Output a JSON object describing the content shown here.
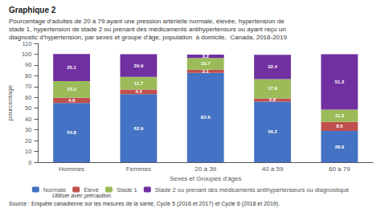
{
  "chart_data": {
    "type": "bar",
    "title": "Graphique 2",
    "subtitle": [
      "Pourcentage d'adultes de 20 à 79 ayant une pression artérielle normale, élevée, hypertension de",
      "stade 1, hypertension de stade 2 ou prenant des médicaments antihypertensurs ou ayant reçu un",
      "diagnostic d'hypertension, par sexes et groupe d'âge, population  à domicile,  Canada, 2016-2019"
    ],
    "xlabel": "Sexes et Groupes d'âges",
    "ylabel": "pourcentage",
    "categories": [
      "Hommes",
      "Femmes",
      "20 à 39",
      "40 à 59",
      "60 à 79"
    ],
    "series": [
      {
        "name": "Normale",
        "color": "#4472C4",
        "values": [
          54.8,
          62.9,
          82.6,
          56.2,
          28.9
        ]
      },
      {
        "name": "Élevé",
        "color": "#C0504D",
        "values": [
          4.9,
          4.4,
          3.1,
          2.9,
          8.5
        ]
      },
      {
        "name": "Stade 1",
        "color": "#9BBB59",
        "values": [
          15.3,
          11.7,
          10.7,
          17.9,
          11.3
        ]
      },
      {
        "name": "Stade 2 ou prenant des médicaments antihypertenseurs ou diagnostiqué",
        "color": "#7030A0",
        "values": [
          25.1,
          20.9,
          3.2,
          22.4,
          51.3
        ]
      }
    ],
    "stacked": true,
    "data_labels": true,
    "ylim": [
      0,
      110
    ],
    "yticks": [
      0,
      10,
      20,
      30,
      40,
      50,
      60,
      70,
      80,
      90,
      100,
      110
    ],
    "grid": false,
    "legend": "bottom",
    "annotations": [
      "Utiliser avec précaution.",
      "Source : Enquête canadienne sur les mesures de la santé, Cycle 5 (2016 et 2017) et Cycle 6 (2018 et 2019)."
    ]
  }
}
